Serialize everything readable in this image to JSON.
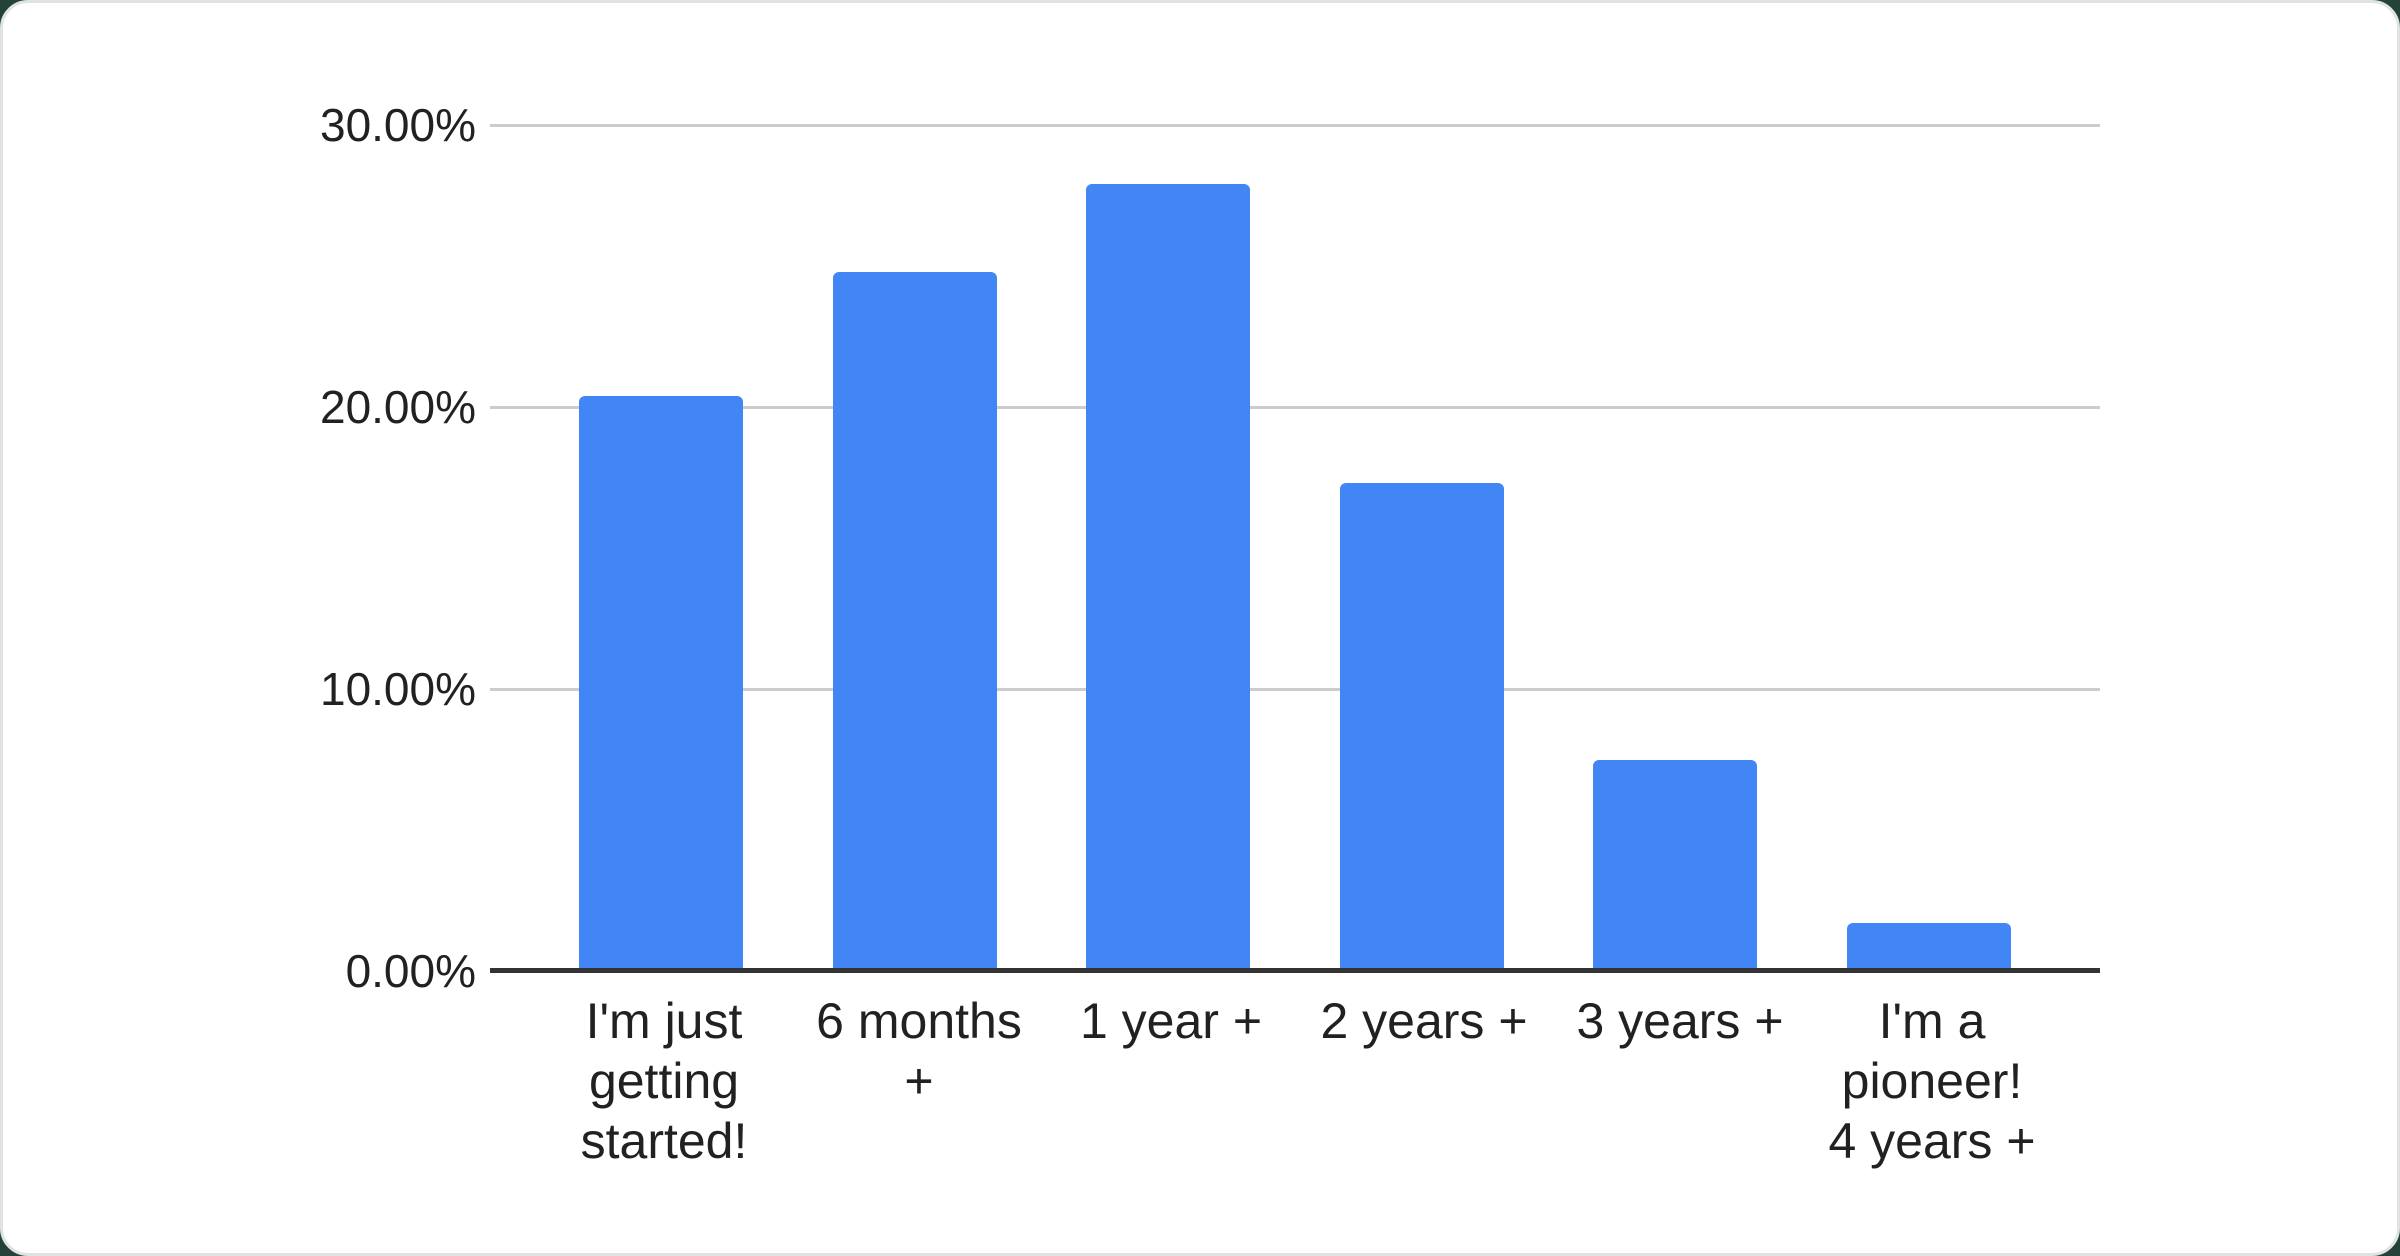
{
  "chart_data": {
    "type": "bar",
    "title": "",
    "xlabel": "",
    "ylabel": "",
    "unit": "%",
    "categories": [
      "I'm just getting started!",
      "6 months +",
      "1 year +",
      "2 years +",
      "3 years +",
      "I'm a pioneer! 4 years +"
    ],
    "tick_labels": [
      "I'm just\ngetting\nstarted!",
      "6 months\n+",
      "1 year +",
      "2 years +",
      "3 years +",
      "I'm a\npioneer!\n4 years +"
    ],
    "values": [
      20.4,
      24.8,
      27.9,
      17.3,
      7.5,
      1.7
    ],
    "ylim": [
      0,
      30
    ],
    "y_ticks": [
      {
        "label": "30.00%",
        "value": 30
      },
      {
        "label": "20.00%",
        "value": 20
      },
      {
        "label": "10.00%",
        "value": 10
      },
      {
        "label": "0.00%",
        "value": 0
      }
    ],
    "grid": "horizontal",
    "legend": "none",
    "colors": {
      "bar": "#4285f4",
      "gridline": "#cccccc",
      "axis_line": "#333333",
      "label_text": "#212121",
      "card_background": "#ffffff",
      "page_background": "#24423a"
    }
  }
}
